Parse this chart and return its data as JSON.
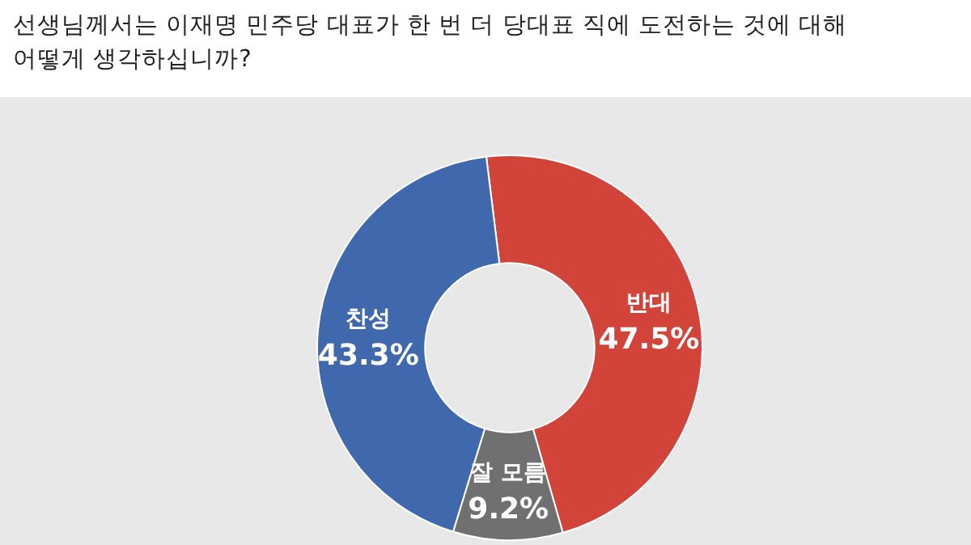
{
  "chart_data": {
    "type": "donut",
    "title": "선생님께서는 이재명 민주당 대표가 한 번 더 당대표 직에 도전하는 것에 대해\n어떻게 생각하십니까?",
    "categories": [
      "반대",
      "잘 모름",
      "찬성"
    ],
    "values": [
      47.5,
      9.2,
      43.3
    ],
    "colors": [
      "#d2443a",
      "#707070",
      "#4069ad"
    ],
    "value_labels": [
      "47.5%",
      "9.2%",
      "43.3%"
    ]
  }
}
